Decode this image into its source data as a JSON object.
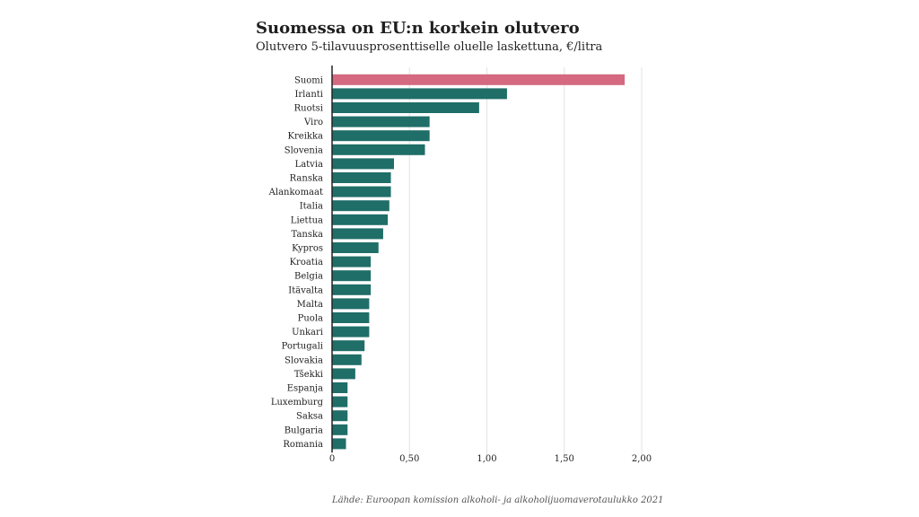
{
  "title": "Suomessa on EU:n korkein olutvero",
  "subtitle": "Olutvero 5-tilavuusprosenttiselle oluelle laskettuna, €/litra",
  "source": "Lähde: Euroopan komission alkoholi- ja alkoholijuomaverotaulukko 2021",
  "colors": {
    "highlight": "#d4697f",
    "bar": "#1f6e68",
    "grid": "#e3e3e3",
    "axis": "#222222"
  },
  "chart_data": {
    "type": "bar",
    "orientation": "horizontal",
    "title": "Suomessa on EU:n korkein olutvero",
    "subtitle": "Olutvero 5-tilavuusprosenttiselle oluelle laskettuna, €/litra",
    "categories": [
      "Suomi",
      "Irlanti",
      "Ruotsi",
      "Viro",
      "Kreikka",
      "Slovenia",
      "Latvia",
      "Ranska",
      "Alankomaat",
      "Italia",
      "Liettua",
      "Tanska",
      "Kypros",
      "Kroatia",
      "Belgia",
      "Itävalta",
      "Malta",
      "Puola",
      "Unkari",
      "Portugali",
      "Slovakia",
      "Tšekki",
      "Espanja",
      "Luxemburg",
      "Saksa",
      "Bulgaria",
      "Romania"
    ],
    "values": [
      1.89,
      1.13,
      0.95,
      0.63,
      0.63,
      0.6,
      0.4,
      0.38,
      0.38,
      0.37,
      0.36,
      0.33,
      0.3,
      0.25,
      0.25,
      0.25,
      0.24,
      0.24,
      0.24,
      0.21,
      0.19,
      0.15,
      0.1,
      0.1,
      0.1,
      0.1,
      0.09
    ],
    "highlight": "Suomi",
    "xlim": [
      0,
      2.0
    ],
    "xticks": [
      0,
      0.5,
      1.0,
      1.5,
      2.0
    ],
    "xtick_labels": [
      "0",
      "0,50",
      "1,00",
      "1,50",
      "2,00"
    ],
    "xlabel": "",
    "ylabel": "",
    "grid": "vertical"
  }
}
